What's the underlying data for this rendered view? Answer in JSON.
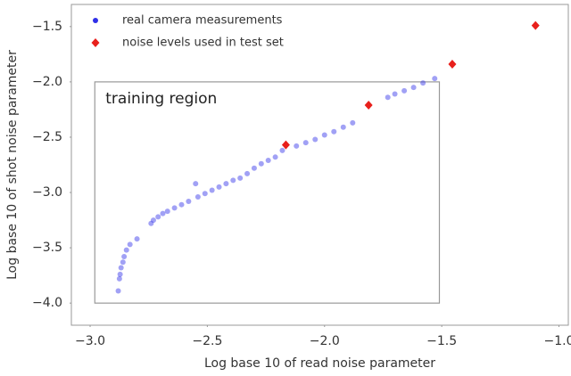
{
  "chart_data": {
    "type": "scatter",
    "x_label": "Log base 10 of read noise parameter",
    "y_label": "Log base 10 of shot noise parameter",
    "xlim": [
      -3.08,
      -0.96
    ],
    "ylim": [
      -4.2,
      -1.3
    ],
    "xticks": [
      {
        "value": -3.0,
        "label": "−3.0"
      },
      {
        "value": -2.5,
        "label": "−2.5"
      },
      {
        "value": -2.0,
        "label": "−2.0"
      },
      {
        "value": -1.5,
        "label": "−1.5"
      },
      {
        "value": -1.0,
        "label": "−1.0"
      }
    ],
    "yticks": [
      {
        "value": -4.0,
        "label": "−4.0"
      },
      {
        "value": -3.5,
        "label": "−3.5"
      },
      {
        "value": -3.0,
        "label": "−3.0"
      },
      {
        "value": -2.5,
        "label": "−2.5"
      },
      {
        "value": -2.0,
        "label": "−2.0"
      },
      {
        "value": -1.5,
        "label": "−1.5"
      }
    ],
    "grid": false,
    "legend": "upper left",
    "region": {
      "label": "training region",
      "x": [
        -2.98,
        -1.51
      ],
      "y": [
        -4.0,
        -2.0
      ]
    },
    "series": [
      {
        "name": "real camera measurements",
        "color": "#2f2fe8",
        "x": [
          -2.88,
          -2.875,
          -2.872,
          -2.868,
          -2.86,
          -2.855,
          -2.845,
          -2.83,
          -2.8,
          -2.74,
          -2.73,
          -2.71,
          -2.69,
          -2.67,
          -2.64,
          -2.61,
          -2.58,
          -2.55,
          -2.54,
          -2.51,
          -2.48,
          -2.45,
          -2.42,
          -2.39,
          -2.36,
          -2.33,
          -2.3,
          -2.27,
          -2.24,
          -2.21,
          -2.18,
          -2.12,
          -2.08,
          -2.04,
          -2.0,
          -1.96,
          -1.92,
          -1.88,
          -1.73,
          -1.7,
          -1.66,
          -1.62,
          -1.58,
          -1.53
        ],
        "values": [
          -3.89,
          -3.78,
          -3.74,
          -3.68,
          -3.63,
          -3.58,
          -3.52,
          -3.47,
          -3.42,
          -3.28,
          -3.25,
          -3.22,
          -3.19,
          -3.17,
          -3.14,
          -3.11,
          -3.08,
          -2.92,
          -3.04,
          -3.01,
          -2.98,
          -2.95,
          -2.92,
          -2.89,
          -2.87,
          -2.83,
          -2.78,
          -2.74,
          -2.71,
          -2.68,
          -2.62,
          -2.58,
          -2.55,
          -2.52,
          -2.48,
          -2.45,
          -2.41,
          -2.37,
          -2.14,
          -2.11,
          -2.08,
          -2.05,
          -2.01,
          -1.97
        ]
      },
      {
        "name": "noise levels used in test set",
        "color": "#e8201c",
        "x": [
          -2.165,
          -1.812,
          -1.455,
          -1.1
        ],
        "values": [
          -2.57,
          -2.21,
          -1.84,
          -1.49
        ]
      }
    ]
  }
}
